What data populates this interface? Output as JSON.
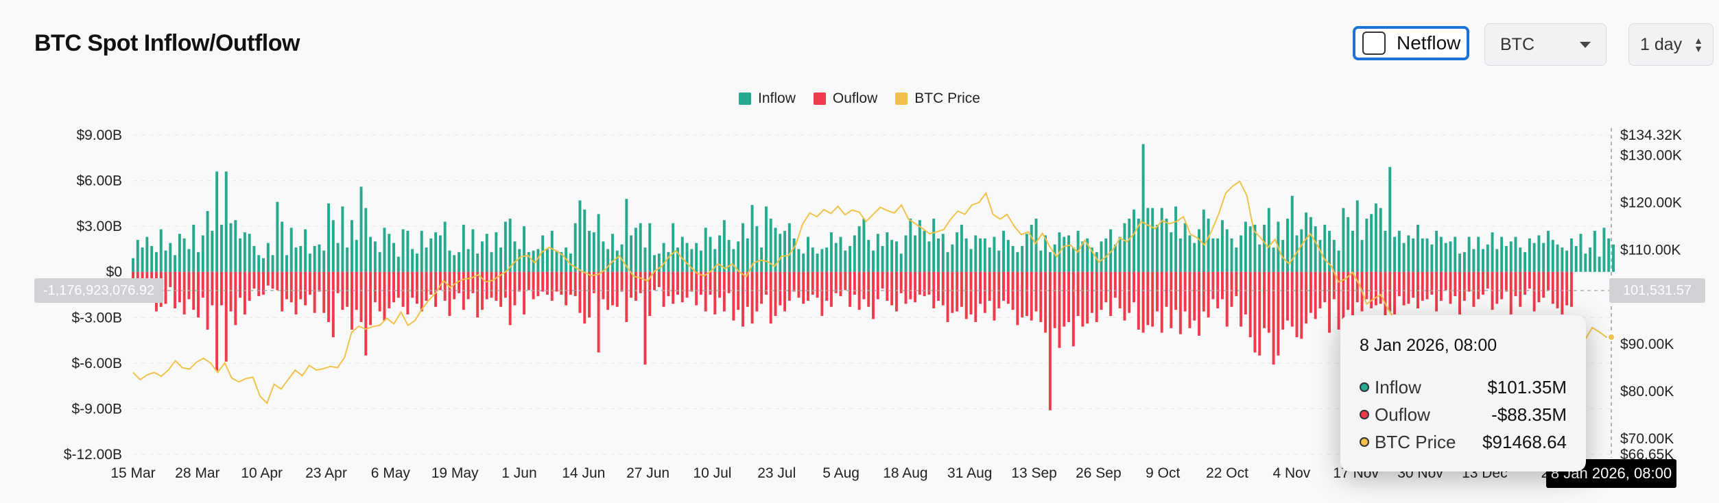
{
  "header": {
    "title": "BTC Spot Inflow/Outflow",
    "netflow_label": "Netflow",
    "netflow_checked": false,
    "asset_select": "BTC",
    "period_select": "1 day"
  },
  "legend": [
    {
      "label": "Inflow",
      "color": "#26a98f"
    },
    {
      "label": "Ouflow",
      "color": "#ef3a4c"
    },
    {
      "label": "BTC Price",
      "color": "#f0c24a"
    }
  ],
  "crosshair": {
    "left_value": "-1,176,923,076.92",
    "right_value": "101,531.57",
    "x_value": "8 Jan 2026, 08:00"
  },
  "tooltip": {
    "title": "8 Jan 2026, 08:00",
    "rows": [
      {
        "name": "Inflow",
        "value": "$101.35M",
        "color": "#26a98f"
      },
      {
        "name": "Ouflow",
        "value": "-$88.35M",
        "color": "#ef3a4c"
      },
      {
        "name": "BTC Price",
        "value": "$91468.64",
        "color": "#f0c24a"
      }
    ]
  },
  "chart_data": {
    "type": "bar",
    "title": "BTC Spot Inflow/Outflow",
    "series_names": [
      "Inflow",
      "Ouflow",
      "BTC Price"
    ],
    "x_labels": [
      "15 Mar",
      "28 Mar",
      "10 Apr",
      "23 Apr",
      "6 May",
      "19 May",
      "1 Jun",
      "14 Jun",
      "27 Jun",
      "10 Jul",
      "23 Jul",
      "5 Aug",
      "18 Aug",
      "31 Aug",
      "13 Sep",
      "26 Sep",
      "9 Oct",
      "22 Oct",
      "4 Nov",
      "17 Nov",
      "30 Nov",
      "13 Dec",
      "26 Dec",
      "8 Jan"
    ],
    "x_tick_labels": [
      "15 Mar",
      "28 Mar",
      "10 Apr",
      "23 Apr",
      "6 May",
      "19 May",
      "1 Jun",
      "14 Jun",
      "27 Jun",
      "10 Jul",
      "23 Jul",
      "5 Aug",
      "18 Aug",
      "31 Aug",
      "13 Sep",
      "26 Sep",
      "9 Oct",
      "22 Oct",
      "4 Nov",
      "17 Nov",
      "30 Nov",
      "13 Dec",
      "26",
      ""
    ],
    "y_left_ticks": [
      "$9.00B",
      "$6.00B",
      "$3.00B",
      "$0",
      "$-3.00B",
      "$-6.00B",
      "$-9.00B",
      "$-12.00B"
    ],
    "y_left_range": [
      -12,
      9
    ],
    "y_right_ticks": [
      "$134.32K",
      "$130.00K",
      "$120.00K",
      "$110.00K",
      "$90.00K",
      "$80.00K",
      "$70.00K",
      "$66.65K"
    ],
    "y_right_values": [
      134.32,
      130,
      120,
      110,
      90,
      80,
      70,
      66.65
    ],
    "y_right_range": [
      66.65,
      134.32
    ],
    "inflow_billions": [
      0.9,
      2.1,
      1.6,
      2.3,
      1.7,
      1.3,
      2.8,
      1.4,
      1.9,
      1.1,
      2.5,
      2.2,
      1.5,
      3.1,
      1.3,
      2.4,
      4.0,
      2.7,
      6.6,
      3.1,
      6.6,
      3.2,
      3.4,
      2.2,
      2.6,
      2.5,
      1.7,
      1.1,
      0.9,
      1.9,
      1.1,
      4.6,
      3.3,
      1.1,
      2.9,
      1.6,
      1.7,
      2.8,
      1.2,
      1.7,
      1.8,
      1.4,
      4.5,
      3.4,
      1.9,
      4.3,
      1.6,
      3.4,
      2.1,
      5.6,
      4.2,
      2.3,
      2.0,
      1.3,
      2.9,
      2.5,
      1.9,
      1.0,
      2.8,
      2.7,
      1.5,
      1.2,
      2.7,
      1.6,
      2.2,
      2.6,
      2.4,
      3.3,
      1.4,
      1.1,
      1.3,
      3.1,
      1.5,
      2.8,
      1.2,
      2.0,
      2.5,
      1.3,
      2.6,
      1.6,
      3.3,
      3.5,
      2.0,
      1.5,
      3.0,
      1.3,
      1.4,
      1.5,
      2.4,
      1.5,
      2.7,
      1.4,
      1.3,
      1.6,
      1.2,
      3.2,
      4.7,
      4.1,
      2.7,
      2.6,
      3.8,
      2.0,
      1.5,
      2.5,
      1.4,
      1.8,
      4.8,
      2.4,
      2.9,
      3.2,
      1.6,
      3.2,
      1.1,
      1.2,
      1.9,
      1.3,
      3.2,
      1.6,
      2.3,
      1.9,
      1.5,
      1.9,
      1.4,
      2.9,
      2.3,
      1.5,
      2.4,
      3.4,
      2.1,
      1.5,
      2.0,
      3.2,
      2.2,
      4.4,
      3.0,
      1.6,
      4.3,
      3.5,
      2.9,
      2.5,
      2.7,
      3.2,
      2.2,
      1.5,
      1.2,
      2.3,
      1.6,
      1.2,
      1.5,
      1.6,
      2.6,
      1.9,
      2.3,
      1.4,
      1.7,
      2.4,
      3.0,
      3.5,
      2.1,
      1.4,
      2.5,
      1.7,
      2.6,
      2.1,
      2.0,
      1.2,
      2.4,
      3.5,
      2.4,
      3.4,
      2.7,
      2.0,
      3.5,
      2.2,
      2.5,
      1.3,
      1.8,
      2.6,
      3.1,
      2.2,
      1.5,
      2.4,
      2.2,
      2.2,
      1.6,
      2.3,
      1.4,
      2.7,
      2.1,
      1.7,
      1.3,
      1.7,
      2.5,
      3.1,
      3.5,
      1.4,
      2.4,
      1.3,
      1.8,
      2.6,
      2.3,
      2.4,
      1.6,
      2.7,
      2.0,
      2.2,
      1.6,
      1.3,
      2.0,
      2.2,
      2.8,
      1.8,
      2.3,
      3.2,
      3.5,
      4.1,
      3.5,
      8.4,
      4.2,
      4.2,
      3.1,
      4.2,
      3.5,
      2.6,
      4.3,
      2.2,
      3.2,
      2.4,
      1.9,
      2.8,
      4.1,
      3.5,
      2.2,
      2.2,
      3.4,
      2.8,
      2.2,
      1.6,
      2.4,
      3.3,
      3.0,
      3.1,
      1.8,
      3.1,
      4.2,
      1.6,
      3.3,
      2.1,
      3.5,
      5.0,
      2.4,
      2.8,
      3.9,
      3.6,
      3.0,
      2.1,
      3.1,
      2.7,
      2.1,
      1.4,
      4.2,
      3.6,
      2.7,
      4.7,
      2.1,
      3.5,
      3.8,
      4.5,
      4.2,
      2.7,
      6.9,
      2.3,
      2.7,
      1.9,
      2.4,
      2.2,
      3.1,
      2.2,
      2.2,
      1.8,
      2.7,
      2.3,
      1.9,
      2.0,
      2.3,
      1.2,
      1.3,
      2.3,
      1.5,
      2.3,
      1.5,
      1.8,
      2.6,
      1.5,
      2.3,
      1.7,
      2.0,
      2.3,
      1.6,
      1.3,
      2.2,
      1.9,
      2.4,
      1.9,
      2.7,
      2.1,
      1.8,
      1.6,
      1.4,
      2.2,
      1.7,
      2.5,
      1.2,
      1.6,
      2.7,
      1.0,
      2.9,
      2.2,
      1.8
    ],
    "outflow_billions": [
      -1.0,
      -1.2,
      -1.5,
      -1.1,
      -1.6,
      -2.6,
      -2.3,
      -2.1,
      -1.0,
      -2.4,
      -2.0,
      -2.8,
      -1.8,
      -2.5,
      -3.0,
      -1.7,
      -3.8,
      -2.2,
      -6.5,
      -2.2,
      -5.9,
      -2.6,
      -3.5,
      -1.7,
      -2.8,
      -1.9,
      -1.1,
      -1.6,
      -1.5,
      -0.9,
      -1.1,
      -1.2,
      -2.6,
      -1.8,
      -2.0,
      -2.8,
      -1.8,
      -2.2,
      -1.5,
      -2.7,
      -1.3,
      -2.7,
      -3.3,
      -4.3,
      -1.4,
      -2.5,
      -2.3,
      -3.8,
      -2.5,
      -3.3,
      -5.5,
      -3.5,
      -2.0,
      -2.6,
      -3.2,
      -2.4,
      -2.0,
      -1.7,
      -2.3,
      -2.8,
      -1.7,
      -2.1,
      -2.6,
      -1.9,
      -1.5,
      -2.3,
      -1.2,
      -1.9,
      -2.9,
      -1.8,
      -1.4,
      -2.5,
      -1.8,
      -1.4,
      -3.0,
      -2.5,
      -1.8,
      -1.7,
      -1.9,
      -2.3,
      -1.7,
      -3.5,
      -2.2,
      -1.3,
      -2.8,
      -1.2,
      -1.8,
      -1.6,
      -1.3,
      -1.5,
      -1.9,
      -1.3,
      -1.5,
      -2.2,
      -1.5,
      -1.6,
      -2.7,
      -3.4,
      -3.0,
      -1.4,
      -5.3,
      -1.8,
      -2.5,
      -2.2,
      -2.3,
      -1.3,
      -3.3,
      -1.7,
      -1.9,
      -1.4,
      -6.1,
      -2.9,
      -1.2,
      -1.0,
      -2.3,
      -1.6,
      -2.1,
      -1.5,
      -2.0,
      -1.7,
      -1.3,
      -2.2,
      -1.5,
      -2.6,
      -1.5,
      -2.8,
      -1.7,
      -2.6,
      -1.4,
      -3.2,
      -2.5,
      -3.6,
      -2.3,
      -3.4,
      -2.6,
      -2.1,
      -1.5,
      -3.4,
      -2.9,
      -2.2,
      -2.6,
      -1.9,
      -1.3,
      -1.7,
      -2.1,
      -1.9,
      -1.5,
      -1.7,
      -2.9,
      -1.9,
      -2.3,
      -1.4,
      -1.6,
      -1.2,
      -2.3,
      -1.5,
      -2.5,
      -1.8,
      -2.3,
      -3.1,
      -1.8,
      -1.1,
      -1.9,
      -2.2,
      -2.6,
      -1.4,
      -2.1,
      -1.8,
      -2.0,
      -1.5,
      -1.6,
      -1.5,
      -2.4,
      -1.9,
      -2.2,
      -3.3,
      -2.7,
      -2.6,
      -2.3,
      -3.1,
      -2.8,
      -3.3,
      -2.1,
      -2.7,
      -1.9,
      -3.2,
      -2.4,
      -1.9,
      -2.1,
      -2.5,
      -3.5,
      -3.0,
      -2.9,
      -3.2,
      -2.6,
      -3.3,
      -4.0,
      -9.1,
      -3.7,
      -5.0,
      -3.6,
      -3.3,
      -4.9,
      -2.9,
      -3.6,
      -3.4,
      -2.7,
      -3.3,
      -2.5,
      -2.0,
      -2.9,
      -1.7,
      -2.4,
      -3.2,
      -2.7,
      -2.0,
      -3.8,
      -4.0,
      -3.5,
      -3.6,
      -2.6,
      -4.0,
      -2.3,
      -3.7,
      -2.5,
      -4.1,
      -2.6,
      -3.7,
      -3.2,
      -4.2,
      -2.6,
      -3.0,
      -1.8,
      -2.4,
      -1.8,
      -3.6,
      -2.3,
      -1.6,
      -3.6,
      -2.8,
      -4.3,
      -5.3,
      -5.5,
      -3.7,
      -4.0,
      -6.1,
      -5.5,
      -3.8,
      -3.2,
      -3.6,
      -4.3,
      -4.4,
      -3.4,
      -2.7,
      -3.1,
      -2.4,
      -2.0,
      -4.0,
      -1.8,
      -3.8,
      -3.1,
      -2.5,
      -3.5,
      -2.0,
      -2.6,
      -1.8,
      -2.4,
      -2.2,
      -2.1,
      -3.0,
      -2.6,
      -2.8,
      -1.6,
      -2.2,
      -2.1,
      -1.7,
      -2.4,
      -1.9,
      -1.8,
      -1.5,
      -2.6,
      -1.9,
      -1.2,
      -2.1,
      -1.6,
      -2.8,
      -1.9,
      -1.3,
      -2.3,
      -1.8,
      -1.5,
      -1.1,
      -2.5,
      -2.1,
      -1.8,
      -1.3,
      -2.8,
      -1.6,
      -2.3,
      -1.5,
      -1.1,
      -2.6,
      -2.0,
      -1.7,
      -1.2,
      -2.1,
      -2.4,
      -2.8,
      -2.2,
      -2.3
    ],
    "btc_price_thousands": [
      84.0,
      82.5,
      83.5,
      84.0,
      83.2,
      84.5,
      86.5,
      85.0,
      84.7,
      86.2,
      87.0,
      86.0,
      84.0,
      86.0,
      82.8,
      82.0,
      82.7,
      83.0,
      79.0,
      77.5,
      81.5,
      80.5,
      82.5,
      84.5,
      83.3,
      85.5,
      84.5,
      84.8,
      85.3,
      85.0,
      87.2,
      92.5,
      93.8,
      93.2,
      93.7,
      94.0,
      95.5,
      94.3,
      96.8,
      94.0,
      95.0,
      97.5,
      99.4,
      101.0,
      103.5,
      102.0,
      103.2,
      103.8,
      104.0,
      104.7,
      103.2,
      103.5,
      104.5,
      105.5,
      107.2,
      108.5,
      108.8,
      107.2,
      109.5,
      110.5,
      109.8,
      108.8,
      107.0,
      106.0,
      105.2,
      104.5,
      104.8,
      105.8,
      107.5,
      108.7,
      106.5,
      104.4,
      104.0,
      103.4,
      105.5,
      106.5,
      108.5,
      109.8,
      108.0,
      106.5,
      105.0,
      104.5,
      105.5,
      107.0,
      106.0,
      107.0,
      105.3,
      104.3,
      107.2,
      107.8,
      107.5,
      106.5,
      108.6,
      108.8,
      111.0,
      115.5,
      117.8,
      117.0,
      118.5,
      117.7,
      119.2,
      117.4,
      118.4,
      118.0,
      116.0,
      117.5,
      119.0,
      118.3,
      117.8,
      119.5,
      116.5,
      115.5,
      114.5,
      113.4,
      113.8,
      114.3,
      116.5,
      118.2,
      117.5,
      119.5,
      120.0,
      122.0,
      117.5,
      116.5,
      117.5,
      115.0,
      113.2,
      113.8,
      111.3,
      113.5,
      110.8,
      108.5,
      110.7,
      111.0,
      109.5,
      112.0,
      109.8,
      107.4,
      108.5,
      110.0,
      112.5,
      111.7,
      113.4,
      116.0,
      115.2,
      114.5,
      116.2,
      115.5,
      116.0,
      117.0,
      113.3,
      112.5,
      111.0,
      114.0,
      117.5,
      122.0,
      123.5,
      124.5,
      121.5,
      114.0,
      112.5,
      110.5,
      112.2,
      108.5,
      107.0,
      109.2,
      111.5,
      113.4,
      111.0,
      108.0,
      106.5,
      103.2,
      103.8,
      105.2,
      102.5,
      98.5,
      99.6,
      100.5,
      97.5,
      95.2,
      93.5,
      92.3,
      90.2,
      91.5,
      86.5,
      88.0,
      89.3,
      91.5,
      90.0,
      93.5,
      92.5,
      88.0,
      88.5,
      87.5,
      86.5,
      87.4,
      88.3,
      87.0,
      88.5,
      89.0,
      88.2,
      87.5,
      88.7,
      88.0,
      87.3,
      89.0,
      91.0,
      93.5,
      92.6,
      91.5,
      91.5
    ],
    "visual": {
      "grid": true,
      "legend": "top-center",
      "crosshair": true
    }
  }
}
